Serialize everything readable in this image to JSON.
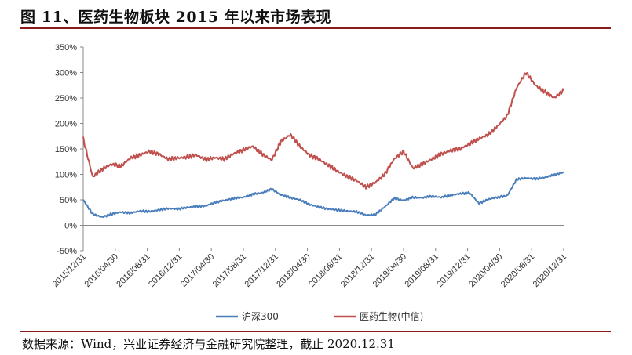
{
  "title": "图 11、医药生物板块 2015 年以来市场表现",
  "source": "数据来源：Wind，兴业证券经济与金融研究院整理，截止 2020.12.31",
  "chart_data": {
    "type": "line",
    "xlabel": "",
    "ylabel": "",
    "ylim": [
      -50,
      350
    ],
    "y_ticks": [
      "-50%",
      "0%",
      "50%",
      "100%",
      "150%",
      "200%",
      "250%",
      "300%",
      "350%"
    ],
    "y_tick_values": [
      -50,
      0,
      50,
      100,
      150,
      200,
      250,
      300,
      350
    ],
    "x_ticks": [
      "2015/12/31",
      "2016/04/30",
      "2016/08/31",
      "2016/12/31",
      "2017/04/30",
      "2017/08/31",
      "2017/12/31",
      "2018/04/30",
      "2018/08/31",
      "2018/12/31",
      "2019/04/30",
      "2019/08/31",
      "2019/12/31",
      "2020/04/30",
      "2020/08/31",
      "2020/12/31"
    ],
    "legend_position": "bottom",
    "grid": false,
    "series": [
      {
        "name": "沪深300",
        "color": "#4a7ebb",
        "values": [
          50,
          22,
          16,
          22,
          26,
          24,
          28,
          27,
          30,
          33,
          32,
          35,
          37,
          38,
          45,
          49,
          53,
          55,
          61,
          64,
          71,
          60,
          54,
          50,
          41,
          36,
          32,
          30,
          28,
          27,
          20,
          21,
          36,
          53,
          49,
          55,
          54,
          57,
          55,
          59,
          62,
          64,
          43,
          51,
          55,
          58,
          90,
          93,
          91,
          94,
          99,
          104
        ]
      },
      {
        "name": "医药生物(中信)",
        "color": "#c0504d",
        "values": [
          170,
          95,
          110,
          120,
          116,
          132,
          138,
          145,
          140,
          130,
          132,
          134,
          138,
          129,
          133,
          130,
          141,
          148,
          155,
          140,
          128,
          165,
          178,
          155,
          138,
          130,
          118,
          106,
          96,
          88,
          75,
          84,
          100,
          130,
          145,
          112,
          120,
          130,
          140,
          147,
          150,
          160,
          170,
          178,
          195,
          215,
          270,
          300,
          275,
          262,
          250,
          265
        ]
      }
    ]
  }
}
